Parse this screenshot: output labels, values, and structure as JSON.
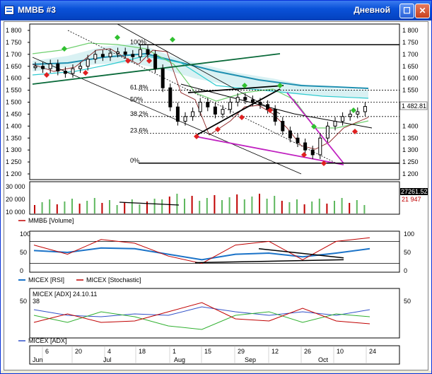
{
  "window": {
    "title": "ММВБ #3",
    "mode": "Дневной",
    "icons": {
      "app": "chart-window-icon",
      "maximize": "maximize-icon",
      "close": "close-icon"
    },
    "colors": {
      "titlebar": "#0a52d8",
      "close": "#c8401e"
    }
  },
  "price_panel": {
    "y_ticks": [
      "1 800",
      "1 750",
      "1 700",
      "1 650",
      "1 600",
      "1 550",
      "1 500",
      "1 450",
      "1 400",
      "1 350",
      "1 300",
      "1 250",
      "1 200"
    ],
    "right_ticks": [
      "1 800",
      "1 750",
      "1 700",
      "1 650",
      "1 600",
      "1 550",
      "1 500",
      "1 450",
      "1 400",
      "1 350",
      "1 300",
      "1 250",
      "1 200"
    ],
    "last_price": "1 482.81",
    "fib_levels": [
      {
        "label": "100%",
        "value": 1740
      },
      {
        "label": "61.8%",
        "value": 1550
      },
      {
        "label": "50%",
        "value": 1500
      },
      {
        "label": "38.2%",
        "value": 1440
      },
      {
        "label": "23.6%",
        "value": 1370
      },
      {
        "label": "0%",
        "value": 1245
      }
    ]
  },
  "volume_panel": {
    "y_ticks": [
      "30 000",
      "20 000",
      "10 000"
    ],
    "readouts": [
      "27261.526",
      "21 947"
    ],
    "legend": "ММВБ [Volume]"
  },
  "rsi_panel": {
    "y_ticks": [
      "100",
      "50",
      "0"
    ],
    "right_ticks": [
      "100",
      "50",
      "0"
    ],
    "legend_rsi": "MICEX [RSI]",
    "legend_stoch": "MICEX [Stochastic]"
  },
  "adx_panel": {
    "y_ticks": [
      "50"
    ],
    "right_ticks": [
      "50"
    ],
    "caption": "MICEX [ADX] 24.10.11",
    "caption_value": "38",
    "legend": "MICEX [ADX]"
  },
  "time_axis": {
    "days": [
      "6",
      "20",
      "4",
      "18",
      "1",
      "15",
      "29",
      "12",
      "26",
      "10",
      "24"
    ],
    "months": [
      "Jun",
      "Jul",
      "Aug",
      "Sep",
      "Oct"
    ]
  },
  "chart_data": [
    {
      "type": "line",
      "title": "",
      "series_note": "ММВБ daily candles with Ichimoku/MA overlays and Fibonacci retracement",
      "x": [
        "Jun 6",
        "Jun 20",
        "Jul 4",
        "Jul 18",
        "Aug 1",
        "Aug 15",
        "Aug 29",
        "Sep 12",
        "Sep 26",
        "Oct 10",
        "Oct 24"
      ],
      "series": [
        {
          "values": [
            1650,
            1620,
            1680,
            1700,
            1710,
            1420,
            1460,
            1500,
            1330,
            1440,
            1482.81
          ]
        }
      ],
      "ylim": [
        1200,
        1800
      ],
      "fibonacci": [
        100,
        61.8,
        50,
        38.2,
        23.6,
        0
      ]
    },
    {
      "type": "bar",
      "title": "",
      "ylim": [
        10000,
        30000
      ],
      "series": [
        {
          "name": "ММВБ [Volume]",
          "values": [
            18000,
            17000,
            19000,
            18500,
            17500,
            24000,
            22000,
            23000,
            22500,
            21000,
            21947
          ]
        }
      ]
    },
    {
      "type": "line",
      "title": "",
      "ylim": [
        0,
        100
      ],
      "series": [
        {
          "name": "MICEX [RSI]",
          "values": [
            55,
            50,
            62,
            60,
            45,
            30,
            45,
            48,
            38,
            48,
            60
          ]
        },
        {
          "name": "MICEX [Stochastic]",
          "values": [
            70,
            45,
            85,
            75,
            40,
            20,
            70,
            80,
            30,
            80,
            90
          ]
        }
      ]
    },
    {
      "type": "line",
      "title": "",
      "ylim": [
        0,
        60
      ],
      "series": [
        {
          "name": "MICEX [ADX]",
          "values": [
            38,
            30,
            28,
            32,
            30,
            42,
            35,
            30,
            35,
            30,
            38
          ]
        }
      ]
    }
  ]
}
